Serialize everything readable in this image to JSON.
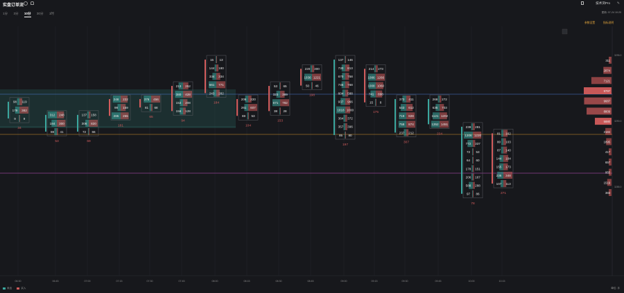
{
  "header": {
    "title": "实盘订单流",
    "tabs": [
      {
        "label": "1分",
        "active": false
      },
      {
        "label": "3分",
        "active": false
      },
      {
        "label": "10分",
        "active": true
      },
      {
        "label": "30分",
        "active": false
      },
      {
        "label": "1时",
        "active": false
      }
    ],
    "brand": "技术浏Pro",
    "updated": "更新: 07-24 10:20",
    "link_settings": "参数设置",
    "link_help": "指标说明"
  },
  "legend": {
    "sell": "卖出",
    "buy": "买入",
    "unit": "单位: 手"
  },
  "colors": {
    "buy": "#d25c5c",
    "sell": "#3aa79e",
    "bg": "#17181c",
    "gold": "#d99a2a",
    "magenta": "#c955c9",
    "blue": "#4a7dd8"
  },
  "chart_data": {
    "type": "footprint",
    "time_ticks": [
      "06:30",
      "06:45",
      "07:00",
      "07:15",
      "07:30",
      "07:45",
      "08:00",
      "08:15",
      "08:30",
      "08:45",
      "09:00",
      "09:15",
      "09:30",
      "09:45",
      "10:00",
      "10:15"
    ],
    "price_ticks": [
      "3295.0",
      "3290.0",
      "3285.0"
    ],
    "bars": [
      {
        "time": "06:30",
        "trend": "down",
        "delta": "34",
        "rows": [
          [
            "98",
            "119"
          ],
          [
            "179",
            "382"
          ],
          [
            "9",
            "9"
          ]
        ]
      },
      {
        "time": "06:40",
        "trend": "down",
        "delta": "53",
        "rows": [
          [
            "312",
            "248"
          ],
          [
            "184",
            "300"
          ],
          [
            "88",
            "41"
          ]
        ]
      },
      {
        "time": "06:50",
        "trend": "down",
        "delta": "69",
        "rows": [
          [
            "137",
            "158"
          ],
          [
            "306",
            "820"
          ],
          [
            "72",
            "66"
          ]
        ]
      },
      {
        "time": "07:00",
        "trend": "up",
        "delta": "181",
        "rows": [
          [
            "248",
            "222"
          ],
          [
            "99",
            "159"
          ],
          [
            "285",
            "255"
          ]
        ]
      },
      {
        "time": "07:10",
        "trend": "up",
        "delta": "65",
        "rows": [
          [
            "376",
            "456"
          ],
          [
            "81",
            "68"
          ]
        ]
      },
      {
        "time": "07:20",
        "trend": "up",
        "delta": "94",
        "rows": [
          [
            "213",
            "252"
          ],
          [
            "380",
            "428"
          ],
          [
            "153",
            "208"
          ],
          [
            "156",
            "128"
          ]
        ]
      },
      {
        "time": "07:30",
        "trend": "up",
        "delta": "184",
        "rows": [
          [
            "15",
            "13"
          ],
          [
            "144",
            "180"
          ],
          [
            "334",
            "334"
          ],
          [
            "661",
            "771"
          ],
          [
            "243",
            "282"
          ]
        ]
      },
      {
        "time": "07:40",
        "trend": "up",
        "delta": "104",
        "rows": [
          [
            "206",
            "220"
          ],
          [
            "261",
            "607"
          ],
          [
            "69",
            "53"
          ]
        ]
      },
      {
        "time": "07:50",
        "trend": "up",
        "delta": "153",
        "rows": [
          [
            "53",
            "65"
          ],
          [
            "323",
            "389"
          ],
          [
            "671",
            "782"
          ],
          [
            "38",
            "28"
          ]
        ]
      },
      {
        "time": "08:00",
        "trend": "up",
        "delta": "198",
        "rows": [
          [
            "220",
            "300"
          ],
          [
            "1036",
            "1221"
          ],
          [
            "50",
            "46"
          ]
        ]
      },
      {
        "time": "08:10",
        "trend": "down",
        "delta": "197",
        "rows": [
          [
            "137",
            "146"
          ],
          [
            "730",
            "813"
          ],
          [
            "670",
            "758"
          ],
          [
            "746",
            "768"
          ],
          [
            "604",
            "588"
          ],
          [
            "937",
            "966"
          ],
          [
            "1818",
            "1000"
          ],
          [
            "364",
            "372"
          ],
          [
            "357",
            "396"
          ],
          [
            "85",
            "80"
          ]
        ]
      },
      {
        "time": "08:20",
        "trend": "up",
        "delta": "175",
        "rows": [
          [
            "214",
            "273"
          ],
          [
            "1086",
            "1266"
          ],
          [
            "1008",
            "1060"
          ],
          [
            "741",
            "898"
          ],
          [
            "15",
            "8"
          ]
        ]
      },
      {
        "time": "08:30",
        "trend": "down",
        "delta": "307",
        "rows": [
          [
            "373",
            "411"
          ],
          [
            "543",
            "612"
          ],
          [
            "719",
            "828"
          ],
          [
            "758",
            "874"
          ],
          [
            "237",
            "212"
          ]
        ]
      },
      {
        "time": "08:40",
        "trend": "down",
        "delta": "224",
        "rows": [
          [
            "268",
            "272"
          ],
          [
            "635",
            "703"
          ],
          [
            "1121",
            "1202"
          ],
          [
            "1352",
            "1451"
          ]
        ]
      },
      {
        "time": "08:50",
        "trend": "down",
        "delta": "78",
        "rows": [
          [
            "239",
            "281"
          ],
          [
            "1306",
            "1220"
          ],
          [
            "772",
            "337"
          ],
          [
            "72",
            "53"
          ],
          [
            "64",
            "60"
          ],
          [
            "178",
            "151"
          ],
          [
            "206",
            "167"
          ],
          [
            "588",
            "288"
          ],
          [
            "97",
            "86"
          ]
        ]
      },
      {
        "time": "09:00",
        "trend": "up",
        "delta": "271",
        "rows": [
          [
            "81",
            "162"
          ],
          [
            "80",
            "103"
          ],
          [
            "87",
            "140"
          ],
          [
            "144",
            "184"
          ],
          [
            "155",
            "173"
          ],
          [
            "236",
            "348"
          ],
          [
            "107",
            "113"
          ]
        ]
      }
    ],
    "profile": [
      "311",
      "2874",
      "7121",
      "9797",
      "9687",
      "8809",
      "5880",
      "2184",
      "1895",
      "417",
      "657",
      "955",
      "1519",
      "383"
    ]
  }
}
